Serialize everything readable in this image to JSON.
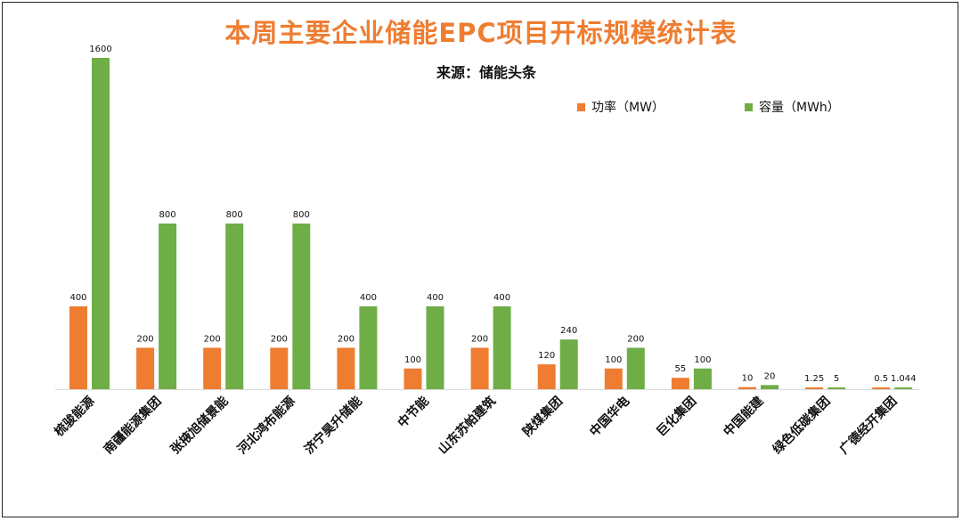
{
  "chart_data": {
    "type": "bar",
    "title": "本周主要企业储能EPC项目开标规模统计表",
    "subtitle": "来源：储能头条",
    "categories": [
      "梳骏能源",
      "南疆能源集团",
      "张掖旭储景能",
      "河北鸿布能源",
      "济宁昊升储能",
      "中节能",
      "山东苏帕建筑",
      "陕煤集团",
      "中国华电",
      "巨化集团",
      "中国能建",
      "绿色低碳集团",
      "广德经开集团"
    ],
    "series": [
      {
        "name": "功率（MW）",
        "color": "#ee7d31",
        "values": [
          400,
          200,
          200,
          200,
          200,
          100,
          200,
          120,
          100,
          55,
          10,
          1.25,
          0.5
        ],
        "labels": [
          "400",
          "200",
          "200",
          "200",
          "200",
          "100",
          "200",
          "120",
          "100",
          "55",
          "10",
          "1.25",
          "0.5"
        ]
      },
      {
        "name": "容量（MWh）",
        "color": "#6fad46",
        "values": [
          1600,
          800,
          800,
          800,
          400,
          400,
          400,
          240,
          200,
          100,
          20,
          5,
          1.044
        ],
        "labels": [
          "1600",
          "800",
          "800",
          "800",
          "400",
          "400",
          "400",
          "240",
          "200",
          "100",
          "20",
          "5",
          "1.044"
        ]
      }
    ],
    "ylim": [
      0,
      1600
    ],
    "grid": false,
    "legend_position": "top-right"
  }
}
